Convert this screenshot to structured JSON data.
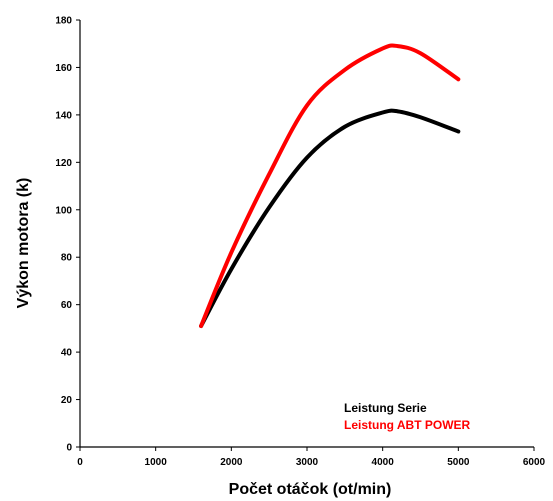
{
  "chart_data": {
    "type": "line",
    "title": "",
    "xlabel": "Počet otáčok (ot/min)",
    "ylabel": "Výkon motora (k)",
    "xlim": [
      0,
      6000
    ],
    "ylim": [
      0,
      180
    ],
    "xticks": [
      0,
      1000,
      2000,
      3000,
      4000,
      5000,
      6000
    ],
    "yticks": [
      0,
      20,
      40,
      60,
      80,
      100,
      120,
      140,
      160,
      180
    ],
    "grid": false,
    "legend_position": "bottom-right",
    "series": [
      {
        "name": "Leistung Serie",
        "color": "#000000",
        "x": [
          1600,
          2000,
          2500,
          3000,
          3500,
          4000,
          4200,
          4500,
          5000
        ],
        "y": [
          51,
          75,
          101,
          122,
          135,
          141,
          141.5,
          139,
          133
        ]
      },
      {
        "name": "Leistung ABT POWER",
        "color": "#ff0000",
        "x": [
          1600,
          2000,
          2500,
          3000,
          3500,
          4000,
          4200,
          4500,
          5000
        ],
        "y": [
          51,
          82,
          115,
          144,
          159,
          168,
          169,
          166,
          155
        ]
      }
    ]
  }
}
